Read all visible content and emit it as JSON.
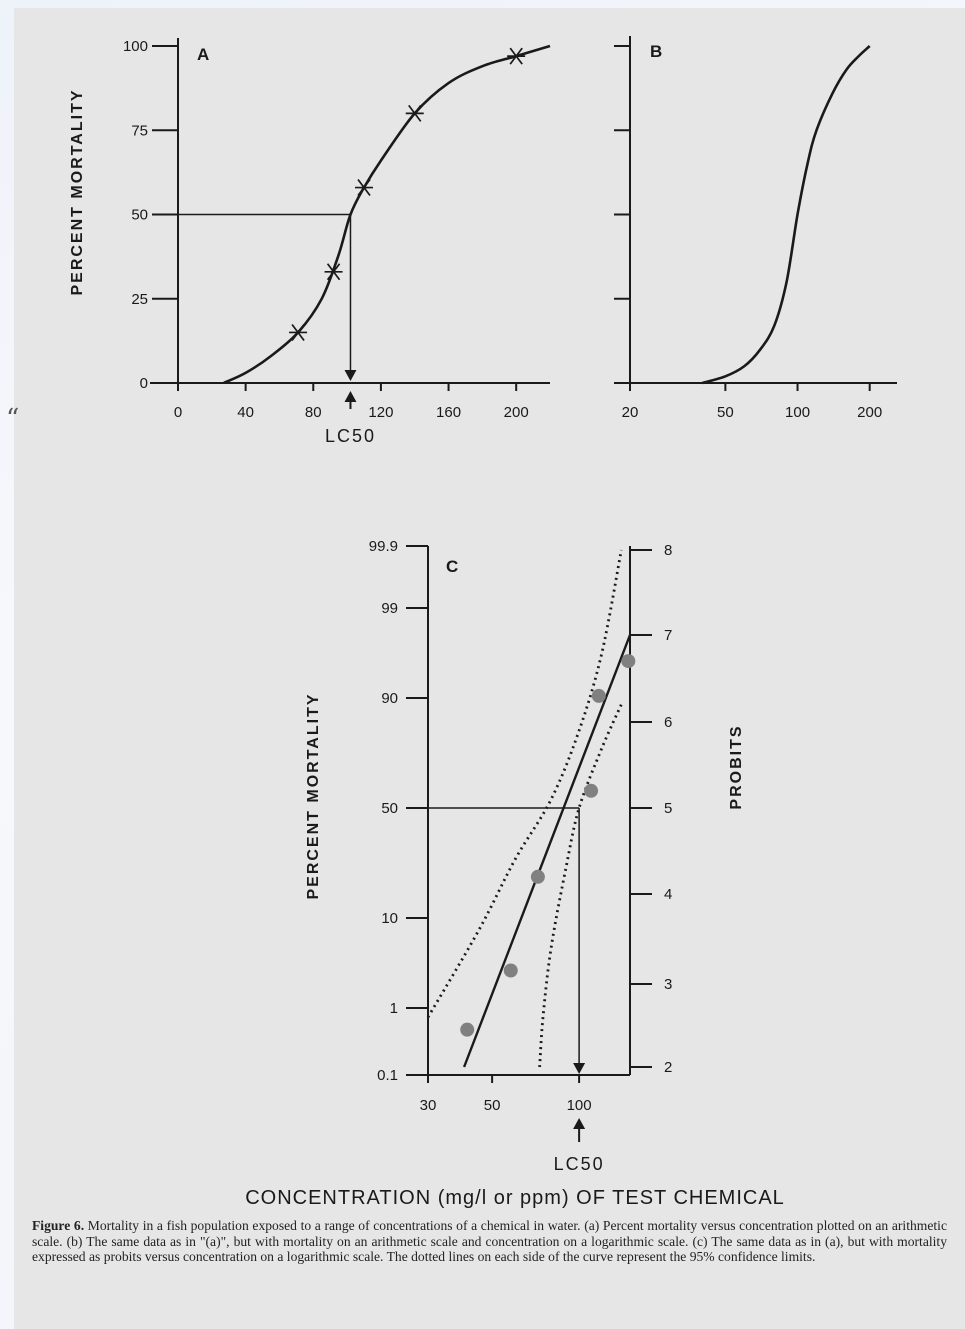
{
  "stray_mark": "“",
  "figure_x_title": "CONCENTRATION (mg/l or ppm) OF TEST CHEMICAL",
  "caption": {
    "label": "Figure 6.",
    "text": "Mortality in a fish population exposed to a range of concentrations of a chemical in water. (a) Percent mortality versus concentration plotted on an arithmetic scale. (b) The same data as in \"(a)\", but with mortality on an arithmetic scale and concentration on a logarithmic scale. (c) The same data as in (a), but with mortality expressed as probits versus concentration on a logarithmic scale. The dotted lines on each side of the curve represent the 95% confidence limits."
  },
  "chart_data": [
    {
      "id": "A",
      "type": "line",
      "panel_label": "A",
      "ylabel": "PERCENT MORTALITY",
      "xlabel": "",
      "x_scale": "linear",
      "xlim": [
        0,
        220
      ],
      "ylim": [
        0,
        100
      ],
      "x_ticks": [
        "0",
        "40",
        "80",
        "120",
        "160",
        "200"
      ],
      "y_ticks": [
        "0",
        "25",
        "50",
        "75",
        "100"
      ],
      "lc50_label": "LC50",
      "lc50_value": 102,
      "observed_points": {
        "x": [
          71,
          92,
          110,
          140,
          200
        ],
        "y": [
          15,
          33,
          58,
          80,
          97
        ]
      },
      "fitted_curve": {
        "x": [
          27,
          40,
          55,
          71,
          85,
          95,
          102,
          110,
          120,
          140,
          160,
          180,
          200,
          220
        ],
        "y": [
          0,
          3,
          8,
          15,
          25,
          38,
          50,
          58,
          66,
          80,
          89,
          94,
          97,
          100
        ]
      },
      "grid": false
    },
    {
      "id": "B",
      "type": "line",
      "panel_label": "B",
      "ylabel": "",
      "x_scale": "log",
      "xlim": [
        20,
        260
      ],
      "ylim": [
        0,
        100
      ],
      "x_ticks": [
        "20",
        "50",
        "100",
        "200"
      ],
      "fitted_curve": {
        "x": [
          40,
          50,
          60,
          70,
          80,
          90,
          100,
          110,
          120,
          140,
          160,
          180,
          200
        ],
        "y": [
          0,
          2,
          5,
          10,
          17,
          30,
          50,
          65,
          75,
          86,
          93,
          97,
          100
        ]
      },
      "grid": false
    },
    {
      "id": "C",
      "type": "scatter",
      "panel_label": "C",
      "ylabel": "PERCENT MORTALITY",
      "y2label": "PROBITS",
      "x_scale": "log",
      "xlim": [
        30,
        150
      ],
      "x_ticks": [
        "30",
        "50",
        "100"
      ],
      "y_ticks_percent": [
        "0.1",
        "1",
        "10",
        "50",
        "90",
        "99",
        "99.9"
      ],
      "probit_ticks": [
        "2",
        "3",
        "4",
        "5",
        "6",
        "7",
        "8"
      ],
      "lc50_label": "LC50",
      "lc50_value": 100,
      "points": {
        "x": [
          41,
          58,
          72,
          110,
          117,
          148
        ],
        "probit": [
          2.45,
          3.15,
          4.2,
          5.2,
          6.3,
          6.7
        ]
      },
      "fit_line": {
        "x": [
          40,
          150
        ],
        "probit": [
          2.0,
          7.0
        ]
      },
      "confidence_upper": {
        "x": [
          30,
          45,
          60,
          80,
          100,
          120,
          140
        ],
        "probit": [
          2.6,
          3.6,
          4.4,
          5.1,
          5.9,
          6.8,
          8.0
        ]
      },
      "confidence_lower": {
        "x": [
          73,
          75,
          80,
          90,
          100,
          120,
          140
        ],
        "probit": [
          2.0,
          2.6,
          3.4,
          4.3,
          5.0,
          5.7,
          6.2
        ]
      },
      "grid": false
    }
  ]
}
